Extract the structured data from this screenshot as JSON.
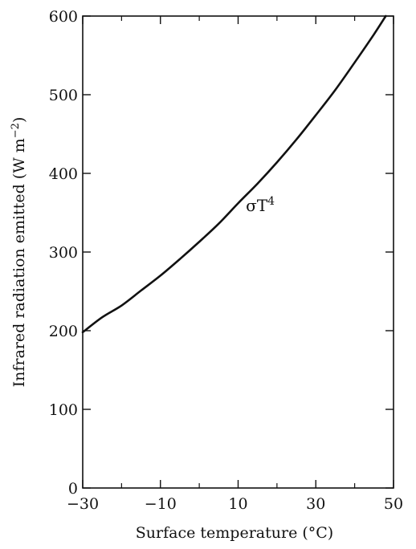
{
  "chart_data": {
    "type": "line",
    "xlabel": "Surface temperature (°C)",
    "ylabel_main": "Infrared radiation emitted (W m",
    "ylabel_sup": "−2",
    "ylabel_close": ")",
    "xlim": [
      -30,
      50
    ],
    "ylim": [
      0,
      600
    ],
    "x_ticks": [
      -30,
      -10,
      10,
      30,
      50
    ],
    "x_tick_labels": [
      "−30",
      "−10",
      "10",
      "30",
      "50"
    ],
    "x_minor_ticks": [
      -20,
      0,
      20,
      40
    ],
    "y_ticks": [
      0,
      100,
      200,
      300,
      400,
      500,
      600
    ],
    "y_tick_labels": [
      "0",
      "100",
      "200",
      "300",
      "400",
      "500",
      "600"
    ],
    "grid": false,
    "series": [
      {
        "x": [
          -30,
          -25,
          -20,
          -15,
          -10,
          -5,
          0,
          5,
          10,
          15,
          20,
          25,
          30,
          35,
          40,
          45,
          48
        ],
        "y": [
          198,
          217,
          232,
          251,
          270,
          291,
          313,
          336,
          362,
          387,
          414,
          443,
          474,
          506,
          541,
          577,
          600
        ]
      }
    ],
    "annotation": {
      "text_main": "σT",
      "text_sup": "4",
      "x": 12,
      "y": 358
    },
    "line_color": "#111111"
  }
}
